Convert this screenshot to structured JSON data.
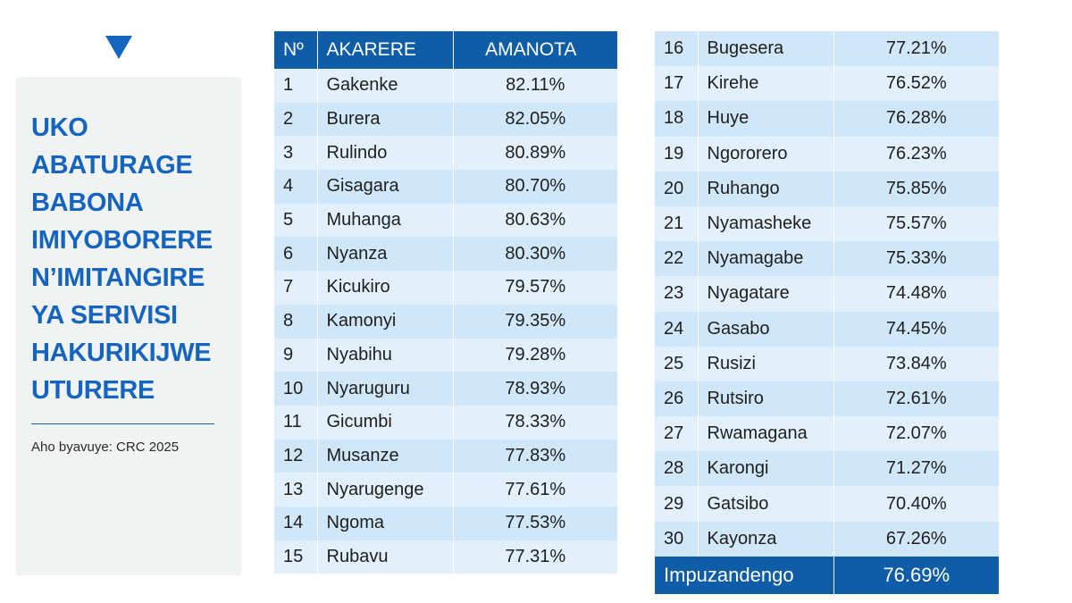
{
  "side": {
    "title_lines": [
      "UKO",
      "ABATURAGE",
      "BABONA",
      "IMIYOBORERE",
      "N’IMITANGIRE",
      "YA SERIVISI",
      "HAKURIKIJWE",
      "UTURERE"
    ],
    "source": "Aho byavuye: CRC 2025"
  },
  "table": {
    "headers": {
      "no": "Nº",
      "district": "AKARERE",
      "score": "AMANOTA"
    },
    "rows": [
      {
        "no": "1",
        "district": "Gakenke",
        "score": "82.11%"
      },
      {
        "no": "2",
        "district": "Burera",
        "score": "82.05%"
      },
      {
        "no": "3",
        "district": "Rulindo",
        "score": "80.89%"
      },
      {
        "no": "4",
        "district": "Gisagara",
        "score": "80.70%"
      },
      {
        "no": "5",
        "district": "Muhanga",
        "score": "80.63%"
      },
      {
        "no": "6",
        "district": "Nyanza",
        "score": "80.30%"
      },
      {
        "no": "7",
        "district": "Kicukiro",
        "score": "79.57%"
      },
      {
        "no": "8",
        "district": "Kamonyi",
        "score": "79.35%"
      },
      {
        "no": "9",
        "district": "Nyabihu",
        "score": "79.28%"
      },
      {
        "no": "10",
        "district": "Nyaruguru",
        "score": "78.93%"
      },
      {
        "no": "11",
        "district": "Gicumbi",
        "score": "78.33%"
      },
      {
        "no": "12",
        "district": "Musanze",
        "score": "77.83%"
      },
      {
        "no": "13",
        "district": "Nyarugenge",
        "score": "77.61%"
      },
      {
        "no": "14",
        "district": "Ngoma",
        "score": "77.53%"
      },
      {
        "no": "15",
        "district": "Rubavu",
        "score": "77.31%"
      },
      {
        "no": "16",
        "district": "Bugesera",
        "score": "77.21%"
      },
      {
        "no": "17",
        "district": "Kirehe",
        "score": "76.52%"
      },
      {
        "no": "18",
        "district": "Huye",
        "score": "76.28%"
      },
      {
        "no": "19",
        "district": "Ngororero",
        "score": "76.23%"
      },
      {
        "no": "20",
        "district": "Ruhango",
        "score": "75.85%"
      },
      {
        "no": "21",
        "district": "Nyamasheke",
        "score": "75.57%"
      },
      {
        "no": "22",
        "district": "Nyamagabe",
        "score": "75.33%"
      },
      {
        "no": "23",
        "district": "Nyagatare",
        "score": "74.48%"
      },
      {
        "no": "24",
        "district": "Gasabo",
        "score": "74.45%"
      },
      {
        "no": "25",
        "district": "Rusizi",
        "score": "73.84%"
      },
      {
        "no": "26",
        "district": "Rutsiro",
        "score": "72.61%"
      },
      {
        "no": "27",
        "district": "Rwamagana",
        "score": "72.07%"
      },
      {
        "no": "28",
        "district": "Karongi",
        "score": "71.27%"
      },
      {
        "no": "29",
        "district": "Gatsibo",
        "score": "70.40%"
      },
      {
        "no": "30",
        "district": "Kayonza",
        "score": "67.26%"
      }
    ],
    "average": {
      "label": "Impuzandengo",
      "score": "76.69%"
    }
  },
  "colors": {
    "accent": "#1565c0",
    "header_bg": "#0f5da6",
    "row_light": "#e2f0fb",
    "row_dark": "#d0e7f9",
    "panel_bg": "#f1f3f2"
  }
}
